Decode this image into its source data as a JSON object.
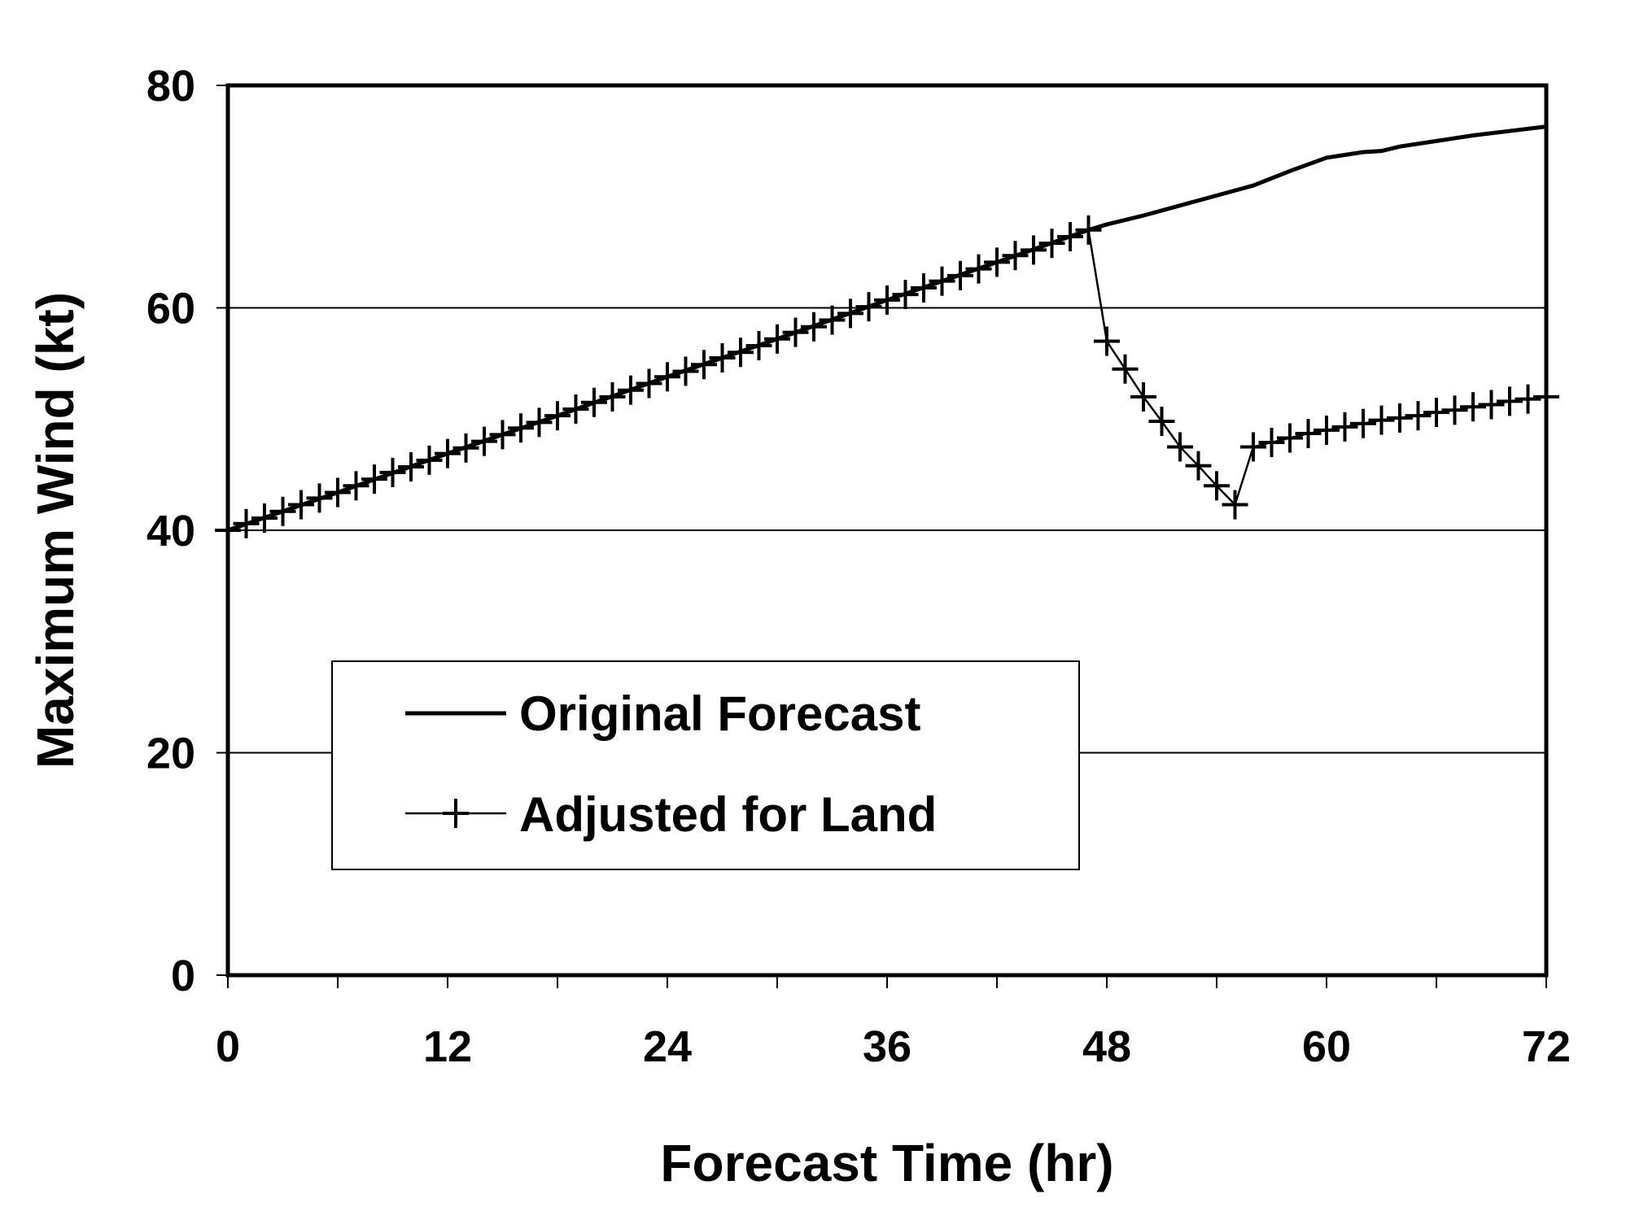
{
  "chart_data": {
    "type": "line",
    "title": "",
    "xlabel": "Forecast Time (hr)",
    "ylabel": "Maximum Wind (kt)",
    "xlim": [
      0,
      72
    ],
    "ylim": [
      0,
      80
    ],
    "xticks": [
      0,
      12,
      24,
      36,
      48,
      60,
      72
    ],
    "yticks": [
      0,
      20,
      40,
      60,
      80
    ],
    "grid": "horizontal",
    "legend_position": "lower-left",
    "series": [
      {
        "name": "Original Forecast",
        "marker": "none",
        "x": [
          0,
          6,
          12,
          18,
          24,
          30,
          36,
          42,
          47,
          48,
          50,
          52,
          54,
          56,
          58,
          60,
          62,
          63,
          64,
          66,
          68,
          70,
          72
        ],
        "y": [
          40,
          43.4,
          46.9,
          50.3,
          53.8,
          57.2,
          60.7,
          64.1,
          67,
          67.5,
          68.3,
          69.2,
          70.1,
          71,
          72.3,
          73.5,
          74,
          74.1,
          74.5,
          75,
          75.5,
          75.9,
          76.3
        ]
      },
      {
        "name": "Adjusted for Land",
        "marker": "plus",
        "x": [
          0,
          1,
          2,
          3,
          4,
          5,
          6,
          7,
          8,
          9,
          10,
          11,
          12,
          13,
          14,
          15,
          16,
          17,
          18,
          19,
          20,
          21,
          22,
          23,
          24,
          25,
          26,
          27,
          28,
          29,
          30,
          31,
          32,
          33,
          34,
          35,
          36,
          37,
          38,
          39,
          40,
          41,
          42,
          43,
          44,
          45,
          46,
          47,
          48,
          49,
          50,
          51,
          52,
          53,
          54,
          55,
          56,
          57,
          58,
          59,
          60,
          61,
          62,
          63,
          64,
          65,
          66,
          67,
          68,
          69,
          70,
          71,
          72
        ],
        "y": [
          40,
          40.6,
          41.1,
          41.7,
          42.3,
          42.9,
          43.4,
          44,
          44.6,
          45.2,
          45.7,
          46.3,
          46.9,
          47.4,
          48,
          48.6,
          49.2,
          49.7,
          50.3,
          50.9,
          51.5,
          52,
          52.6,
          53.2,
          53.8,
          54.3,
          54.9,
          55.5,
          56,
          56.6,
          57.2,
          57.8,
          58.3,
          58.9,
          59.5,
          60.1,
          60.7,
          61.2,
          61.8,
          62.4,
          62.9,
          63.5,
          64.1,
          64.7,
          65.2,
          65.8,
          66.4,
          67,
          57,
          54.5,
          52,
          49.8,
          47.5,
          45.8,
          44,
          42.3,
          47.5,
          47.9,
          48.3,
          48.7,
          49,
          49.3,
          49.6,
          49.9,
          50.1,
          50.3,
          50.6,
          50.8,
          51.1,
          51.3,
          51.6,
          51.8,
          52
        ]
      }
    ]
  }
}
